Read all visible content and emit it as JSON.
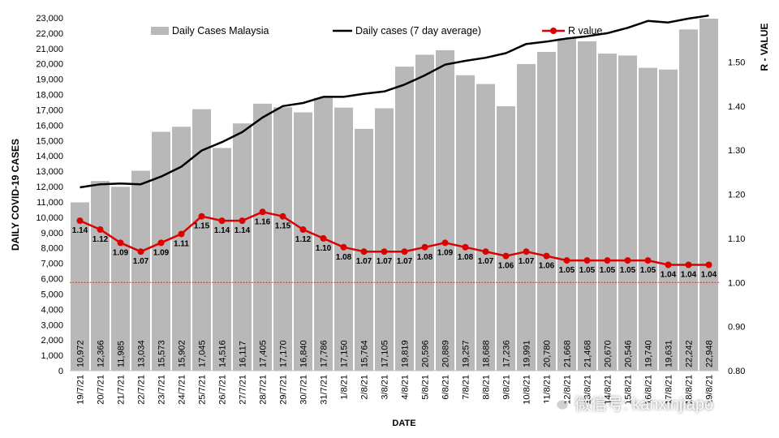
{
  "chart_data": {
    "type": "bar",
    "ylabel": "DAILY COVID-19 CASES",
    "y2label": "R - VALUE",
    "xlabel": "DATE",
    "ylim": [
      0,
      23000
    ],
    "y_ticks": [
      "0",
      "1,000",
      "2,000",
      "3,000",
      "4,000",
      "5,000",
      "6,000",
      "7,000",
      "8,000",
      "9,000",
      "10,000",
      "11,000",
      "12,000",
      "13,000",
      "14,000",
      "15,000",
      "16,000",
      "17,000",
      "18,000",
      "19,000",
      "20,000",
      "21,000",
      "22,000",
      "23,000"
    ],
    "y2lim": [
      0.8,
      1.6
    ],
    "y2_ticks": [
      "0.80",
      "0.90",
      "1.00",
      "1.10",
      "1.20",
      "1.30",
      "1.40",
      "1.50"
    ],
    "categories": [
      "19/7/21",
      "20/7/21",
      "21/7/21",
      "22/7/21",
      "23/7/21",
      "24/7/21",
      "25/7/21",
      "26/7/21",
      "27/7/21",
      "28/7/21",
      "29/7/21",
      "30/7/21",
      "31/7/21",
      "1/8/21",
      "2/8/21",
      "3/8/21",
      "4/8/21",
      "5/8/21",
      "6/8/21",
      "7/8/21",
      "8/8/21",
      "9/8/21",
      "10/8/21",
      "11/8/21",
      "12/8/21",
      "13/8/21",
      "14/8/21",
      "15/8/21",
      "16/8/21",
      "17/8/21",
      "18/8/21",
      "19/8/21"
    ],
    "series": [
      {
        "name": "Daily Cases Malaysia",
        "kind": "bar",
        "axis": "left",
        "values": [
          10972,
          12366,
          11985,
          13034,
          15573,
          15902,
          17045,
          14516,
          16117,
          17405,
          17170,
          16840,
          17786,
          17150,
          15764,
          17105,
          19819,
          20596,
          20889,
          19257,
          18688,
          17236,
          19991,
          20780,
          21668,
          21468,
          20670,
          20546,
          19740,
          19631,
          22242,
          22948
        ],
        "labels": [
          "10,972",
          "12,366",
          "11,985",
          "13,034",
          "15,573",
          "15,902",
          "17,045",
          "14,516",
          "16,117",
          "17,405",
          "17,170",
          "16,840",
          "17,786",
          "17,150",
          "15,764",
          "17,105",
          "19,819",
          "20,596",
          "20,889",
          "19,257",
          "18,688",
          "17,236",
          "19,991",
          "20,780",
          "21,668",
          "21,468",
          "20,670",
          "20,546",
          "19,740",
          "19,631",
          "22,242",
          "22,948"
        ]
      },
      {
        "name": "Daily cases (7 day average)",
        "kind": "line",
        "axis": "left",
        "values": [
          11950,
          12150,
          12200,
          12150,
          12650,
          13300,
          14350,
          14900,
          15550,
          16500,
          17250,
          17450,
          17850,
          17850,
          18050,
          18200,
          18650,
          19250,
          19950,
          20200,
          20400,
          20700,
          21300,
          21450,
          21650,
          21800,
          22000,
          22350,
          22800,
          22700,
          22950,
          23150
        ]
      },
      {
        "name": "R value",
        "kind": "line",
        "axis": "right",
        "values": [
          1.14,
          1.12,
          1.09,
          1.07,
          1.09,
          1.11,
          1.15,
          1.14,
          1.14,
          1.16,
          1.15,
          1.12,
          1.1,
          1.08,
          1.07,
          1.07,
          1.07,
          1.08,
          1.09,
          1.08,
          1.07,
          1.06,
          1.07,
          1.06,
          1.05,
          1.05,
          1.05,
          1.05,
          1.05,
          1.04,
          1.04,
          1.04
        ],
        "labels": [
          "1.14",
          "1.12",
          "1.09",
          "1.07",
          "1.09",
          "1.11",
          "1.15",
          "1.14",
          "1.14",
          "1.16",
          "1.15",
          "1.12",
          "1.10",
          "1.08",
          "1.07",
          "1.07",
          "1.07",
          "1.08",
          "1.09",
          "1.08",
          "1.07",
          "1.06",
          "1.07",
          "1.06",
          "1.05",
          "1.05",
          "1.05",
          "1.05",
          "1.05",
          "1.04",
          "1.04",
          "1.04"
        ]
      }
    ],
    "reference_line": 1.0,
    "legend_position": "top",
    "grid": false
  },
  "colors": {
    "bar": "#b8b8b8",
    "average_line": "#000000",
    "r_line": "#dd0000",
    "reference_line": "#c0392b",
    "text": "#000000"
  },
  "watermark": {
    "text": "微信号: kanxinjiapo",
    "icon": "wechat-icon"
  }
}
